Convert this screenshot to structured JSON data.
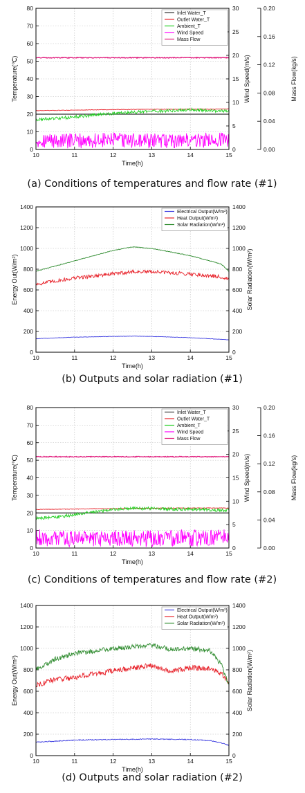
{
  "chart_data": [
    {
      "type": "line",
      "caption": "(a) Conditions of temperatures and flow rate (#1)",
      "xlabel": "Time(h)",
      "ylabel": "Temperature(℃)",
      "y2label": "Wind Speed(m/s)",
      "y3label": "Mass Flow(kg/s)",
      "xlim": [
        10,
        15
      ],
      "ylim": [
        0,
        80
      ],
      "y2lim": [
        0,
        30
      ],
      "y3lim": [
        0,
        0.2
      ],
      "xticks": [
        "10",
        "11",
        "12",
        "13",
        "14",
        "15"
      ],
      "yticks": [
        "0",
        "10",
        "20",
        "30",
        "40",
        "50",
        "60",
        "70",
        "80"
      ],
      "y2ticks": [
        "0",
        "5",
        "10",
        "15",
        "20",
        "25",
        "30"
      ],
      "y3ticks": [
        "0.00",
        "0.04",
        "0.08",
        "0.12",
        "0.16",
        "0.20"
      ],
      "grid": true,
      "legend_position": "top-right",
      "series": [
        {
          "name": "Inlet Water_T",
          "color": "#333333",
          "axis": "left",
          "x": [
            10,
            15
          ],
          "y": [
            20,
            20
          ]
        },
        {
          "name": "Outlet Water_T",
          "color": "#e8242c",
          "axis": "left",
          "x": [
            10,
            11,
            12,
            13,
            14,
            15
          ],
          "y": [
            22,
            22.3,
            22.6,
            22.8,
            22.8,
            22.9
          ]
        },
        {
          "name": "Ambient_T",
          "color": "#22d022",
          "axis": "left",
          "x": [
            10,
            10.5,
            11,
            11.5,
            12,
            12.5,
            13,
            13.5,
            14,
            14.5,
            15
          ],
          "y": [
            17,
            17.5,
            18.5,
            19.5,
            20.5,
            21,
            21.5,
            22,
            22.5,
            22,
            22
          ]
        },
        {
          "name": "Wind Speed",
          "color": "#ff00ff",
          "axis": "right",
          "x": [
            10,
            11,
            12,
            13,
            14,
            15
          ],
          "y": [
            2.0,
            1.8,
            2.0,
            1.8,
            2.0,
            2.0
          ]
        },
        {
          "name": "Mass Flow",
          "color": "#e0177a",
          "axis": "right2",
          "x": [
            10,
            15
          ],
          "y": [
            0.13,
            0.13
          ]
        }
      ]
    },
    {
      "type": "line",
      "caption": "(b) Outputs and solar radiation (#1)",
      "xlabel": "Time(h)",
      "ylabel": "Energy Out(W/m²)",
      "y2label": "Solar Radiation(W/m²)",
      "xlim": [
        10,
        15
      ],
      "ylim": [
        0,
        1400
      ],
      "y2lim": [
        0,
        1400
      ],
      "xticks": [
        "10",
        "11",
        "12",
        "13",
        "14",
        "15"
      ],
      "yticks": [
        "0",
        "200",
        "400",
        "600",
        "800",
        "1000",
        "1200",
        "1400"
      ],
      "y2ticks": [
        "0",
        "200",
        "400",
        "600",
        "800",
        "1000",
        "1200",
        "1400"
      ],
      "grid": true,
      "legend_position": "top-right",
      "series": [
        {
          "name": "Electrical Output(W/m²)",
          "color": "#3a3ae0",
          "x": [
            10,
            11,
            12,
            12.5,
            13,
            14,
            15
          ],
          "y": [
            130,
            145,
            152,
            155,
            152,
            140,
            120
          ]
        },
        {
          "name": "Heat Output(W/m²)",
          "color": "#e8242c",
          "x": [
            10,
            11,
            12,
            12.5,
            13,
            14,
            14.8,
            15
          ],
          "y": [
            655,
            715,
            755,
            775,
            775,
            755,
            725,
            705
          ]
        },
        {
          "name": "Solar Radiation(W/m²)",
          "color": "#2e8b2e",
          "x": [
            10,
            11,
            12,
            12.5,
            13,
            14,
            14.8,
            15
          ],
          "y": [
            780,
            880,
            980,
            1015,
            1000,
            930,
            850,
            780
          ]
        }
      ]
    },
    {
      "type": "line",
      "caption": "(c) Conditions of temperatures and flow rate (#2)",
      "xlabel": "Time(h)",
      "ylabel": "Temperature(℃)",
      "y2label": "Wind Speed(m/s)",
      "y3label": "Mass Flow(kg/s)",
      "xlim": [
        10,
        15
      ],
      "ylim": [
        0,
        80
      ],
      "y2lim": [
        0,
        30
      ],
      "y3lim": [
        0,
        0.2
      ],
      "xticks": [
        "10",
        "11",
        "12",
        "13",
        "14",
        "15"
      ],
      "yticks": [
        "0",
        "10",
        "20",
        "30",
        "40",
        "50",
        "60",
        "70",
        "80"
      ],
      "y2ticks": [
        "0",
        "5",
        "10",
        "15",
        "20",
        "25",
        "30"
      ],
      "y3ticks": [
        "0.00",
        "0.04",
        "0.08",
        "0.12",
        "0.16",
        "0.20"
      ],
      "grid": true,
      "legend_position": "top-right",
      "series": [
        {
          "name": "Inlet Water_T",
          "color": "#333333",
          "axis": "left",
          "x": [
            10,
            15
          ],
          "y": [
            20,
            20
          ]
        },
        {
          "name": "Outlet Water_T",
          "color": "#e8242c",
          "axis": "left",
          "x": [
            10,
            11,
            12,
            13,
            14,
            15
          ],
          "y": [
            22,
            22.2,
            22.5,
            22.7,
            22.8,
            22.8
          ]
        },
        {
          "name": "Ambient_T",
          "color": "#22d022",
          "axis": "left",
          "x": [
            10,
            10.5,
            11,
            11.5,
            12,
            12.5,
            13,
            14,
            15
          ],
          "y": [
            17,
            17.5,
            19,
            20.5,
            22,
            22.5,
            22.5,
            22,
            21.5
          ]
        },
        {
          "name": "Wind Speed",
          "color": "#ff00ff",
          "axis": "right",
          "x": [
            10,
            11,
            12,
            13,
            14,
            15
          ],
          "y": [
            2.2,
            2.0,
            2.2,
            2.0,
            2.2,
            2.2
          ]
        },
        {
          "name": "Mass Flow",
          "color": "#e0177a",
          "axis": "right2",
          "x": [
            10,
            15
          ],
          "y": [
            0.13,
            0.13
          ]
        }
      ]
    },
    {
      "type": "line",
      "caption": "(d) Outputs and solar radiation (#2)",
      "xlabel": "Time(h)",
      "ylabel": "Energy Out(W/m²)",
      "y2label": "Solar Radiation(W/m²)",
      "xlim": [
        10,
        15
      ],
      "ylim": [
        0,
        1400
      ],
      "y2lim": [
        0,
        1400
      ],
      "xticks": [
        "10",
        "11",
        "12",
        "13",
        "14",
        "15"
      ],
      "yticks": [
        "0",
        "200",
        "400",
        "600",
        "800",
        "1000",
        "1200",
        "1400"
      ],
      "y2ticks": [
        "0",
        "200",
        "400",
        "600",
        "800",
        "1000",
        "1200",
        "1400"
      ],
      "grid": true,
      "legend_position": "top-right",
      "series": [
        {
          "name": "Electrical Output(W/m²)",
          "color": "#3a3ae0",
          "x": [
            10,
            10.5,
            11,
            12,
            13,
            14,
            14.5,
            14.8,
            15
          ],
          "y": [
            125,
            135,
            145,
            150,
            155,
            150,
            140,
            120,
            95
          ]
        },
        {
          "name": "Heat Output(W/m²)",
          "color": "#e8242c",
          "x": [
            10,
            10.5,
            11,
            12,
            13,
            13.5,
            14,
            14.5,
            14.8,
            15
          ],
          "y": [
            660,
            710,
            730,
            790,
            840,
            790,
            820,
            810,
            760,
            690
          ]
        },
        {
          "name": "Solar Radiation(W/m²)",
          "color": "#2e8b2e",
          "x": [
            10,
            10.5,
            11,
            12,
            13,
            13.5,
            14,
            14.5,
            14.8,
            15
          ],
          "y": [
            800,
            900,
            950,
            1000,
            1030,
            990,
            1000,
            980,
            850,
            650
          ]
        }
      ]
    }
  ]
}
